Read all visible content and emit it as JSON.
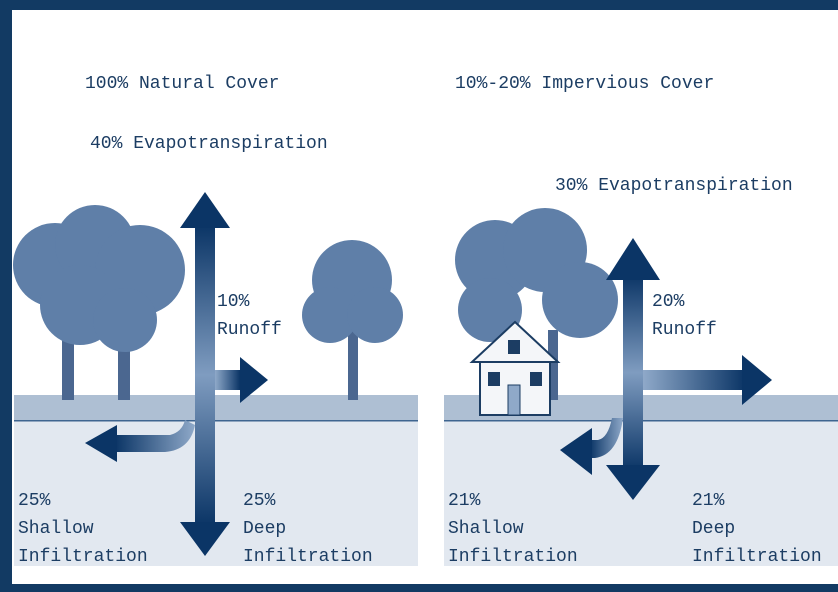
{
  "panels": [
    {
      "title": "100% Natural Cover",
      "evapotranspiration": "40% Evapotranspiration",
      "runoff": {
        "percent": "10%",
        "label": "Runoff"
      },
      "shallow": {
        "percent": "25%",
        "line1": "Shallow",
        "line2": "Infiltration"
      },
      "deep": {
        "percent": "25%",
        "line1": "Deep",
        "line2": "Infiltration"
      }
    },
    {
      "title": "10%-20% Impervious Cover",
      "evapotranspiration": "30% Evapotranspiration",
      "runoff": {
        "percent": "20%",
        "label": "Runoff"
      },
      "shallow": {
        "percent": "21%",
        "line1": "Shallow",
        "line2": "Infiltration"
      },
      "deep": {
        "percent": "21%",
        "line1": "Deep",
        "line2": "Infiltration"
      }
    }
  ]
}
